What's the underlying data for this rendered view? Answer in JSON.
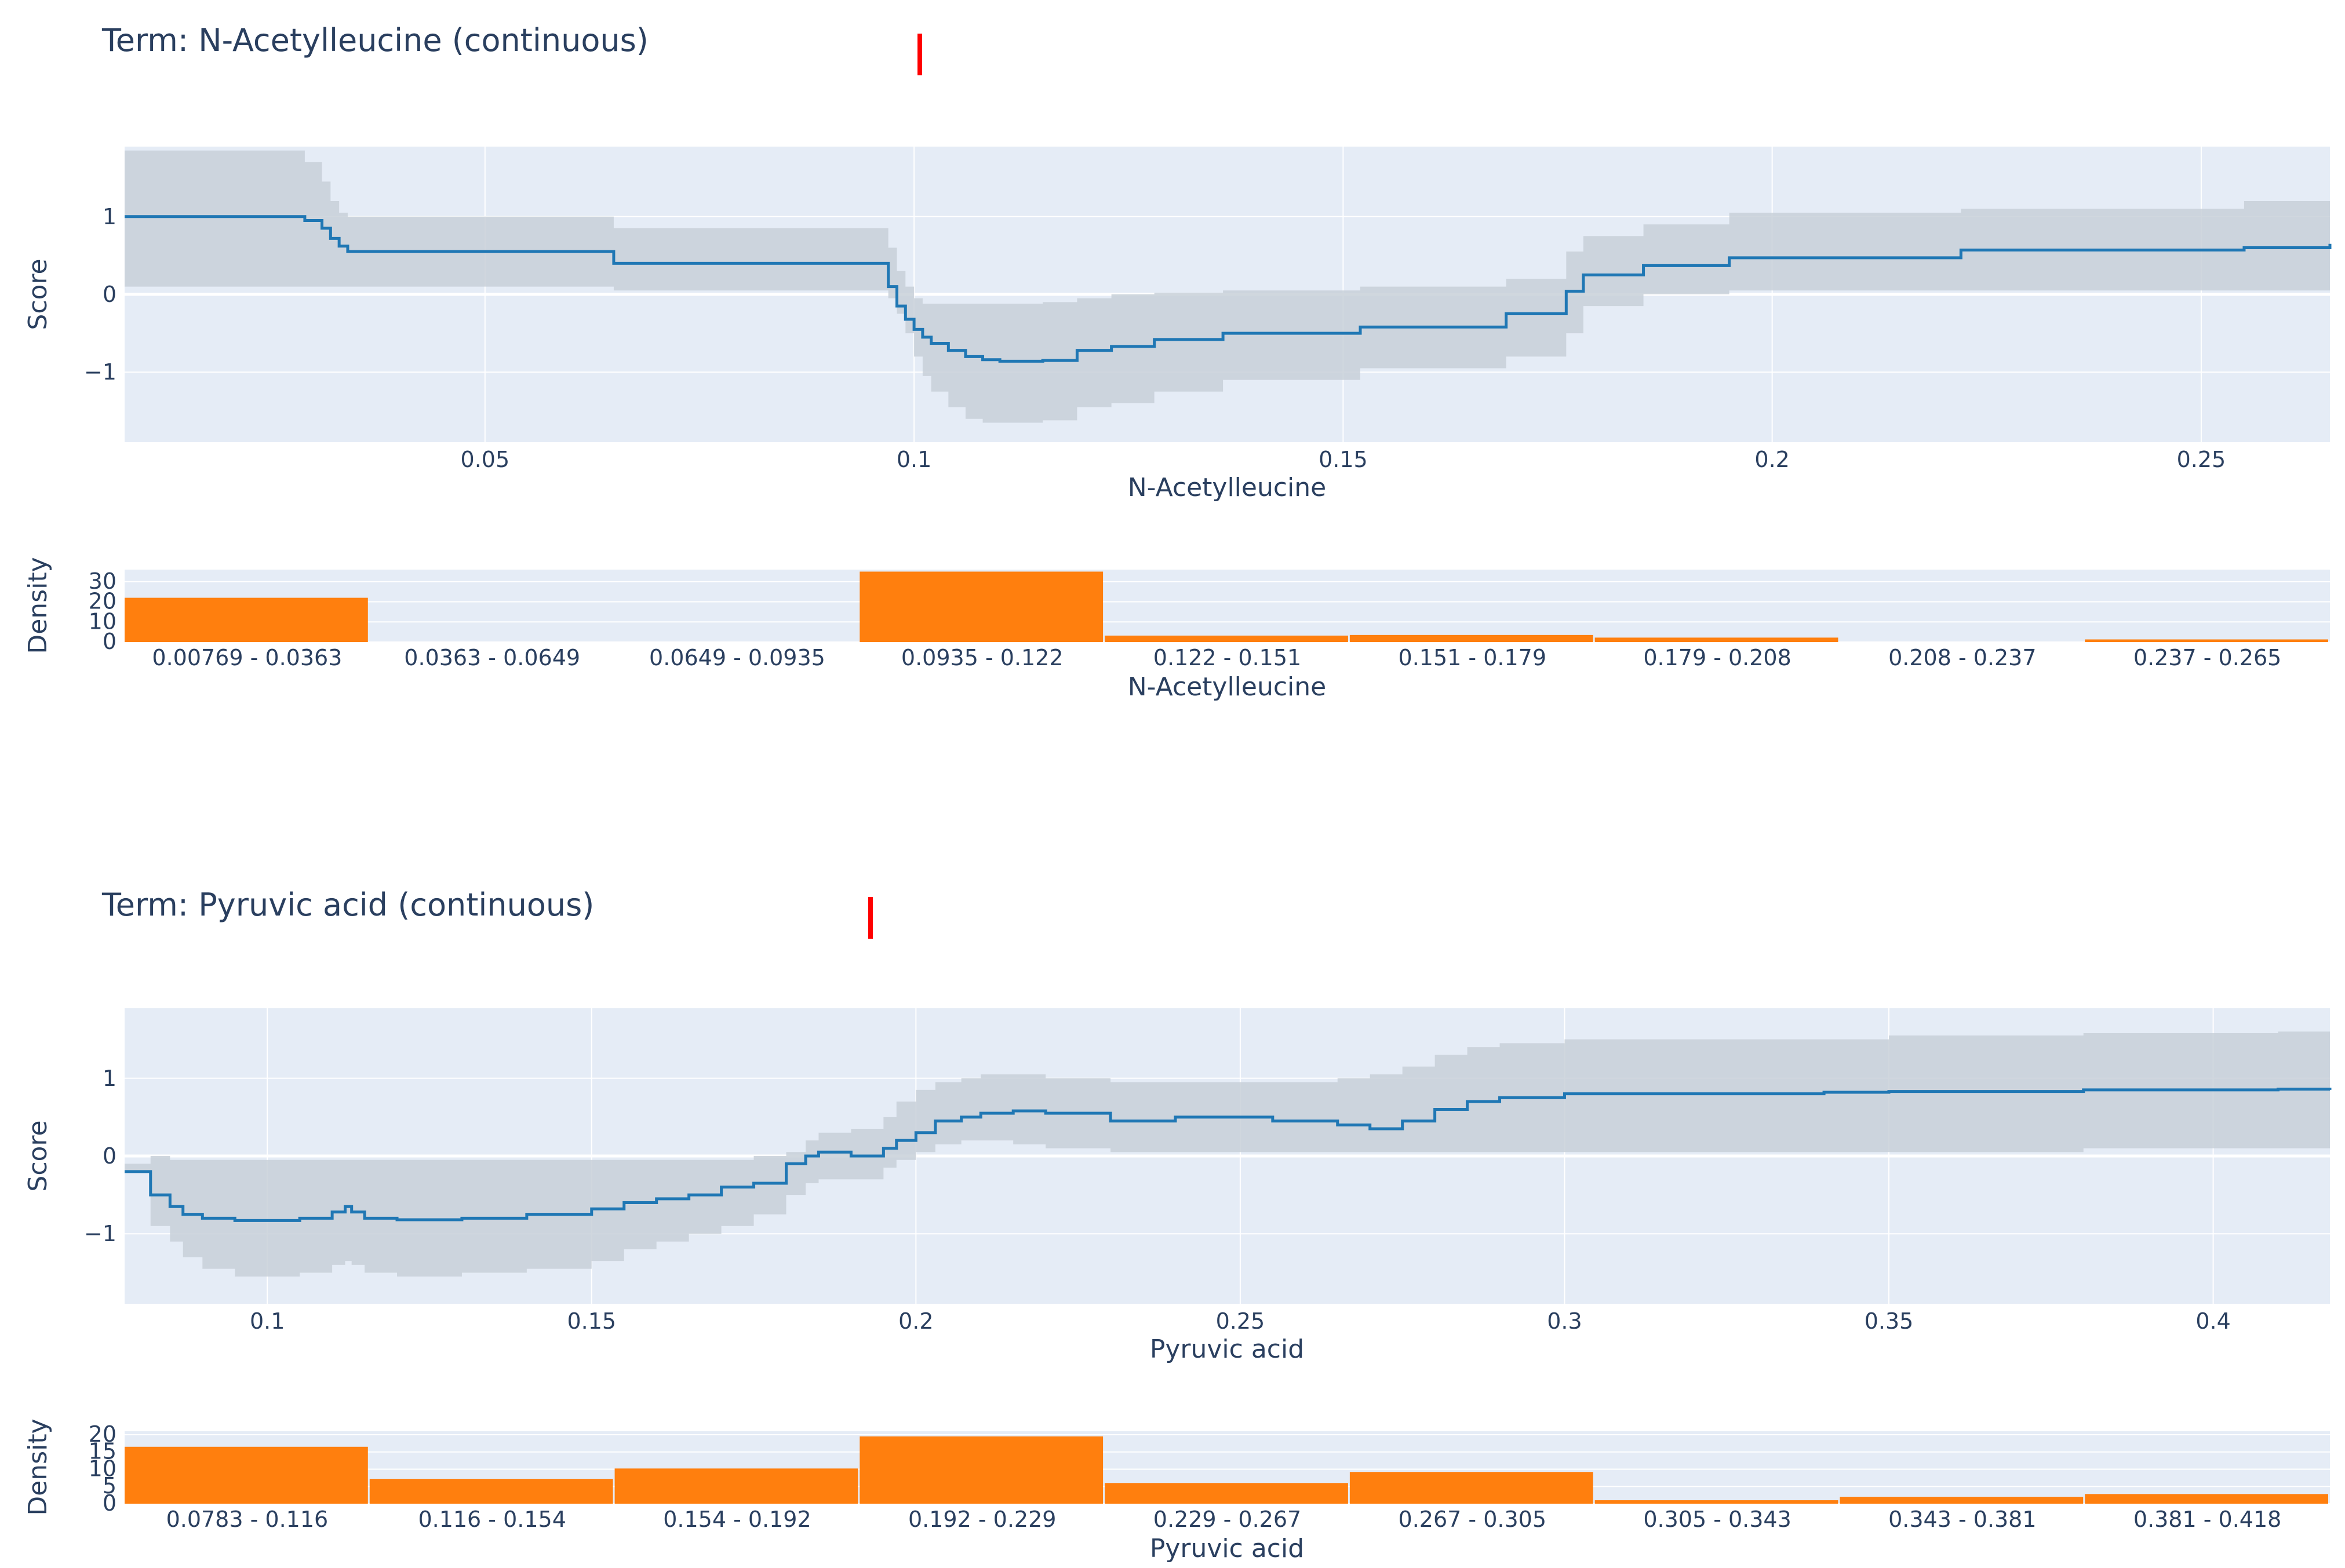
{
  "chart_data": [
    {
      "type": "line",
      "title": "Term: N-Acetylleucine (continuous)",
      "xlabel": "N-Acetylleucine",
      "ylabel": "Score",
      "xlim": [
        0.008,
        0.265
      ],
      "ylim": [
        -1.9,
        1.9
      ],
      "xticks": [
        0.05,
        0.1,
        0.15,
        0.2,
        0.25
      ],
      "xtick_labels": [
        "0.05",
        "0.1",
        "0.15",
        "0.2",
        "0.25"
      ],
      "yticks": [
        1,
        0,
        -1
      ],
      "ytick_labels": [
        "1",
        "0",
        "−1"
      ],
      "grid": true,
      "line_color": "#1f77b4",
      "band_color": "#c8d0d8",
      "series": [
        {
          "name": "Score",
          "x": [
            0.008,
            0.026,
            0.029,
            0.031,
            0.032,
            0.033,
            0.034,
            0.064,
            0.065,
            0.096,
            0.097,
            0.098,
            0.099,
            0.1,
            0.101,
            0.102,
            0.104,
            0.106,
            0.108,
            0.11,
            0.115,
            0.119,
            0.123,
            0.128,
            0.136,
            0.152,
            0.169,
            0.176,
            0.178,
            0.185,
            0.195,
            0.222,
            0.255,
            0.265
          ],
          "y": [
            1.0,
            1.0,
            0.95,
            0.85,
            0.72,
            0.62,
            0.55,
            0.55,
            0.4,
            0.4,
            0.1,
            -0.15,
            -0.32,
            -0.45,
            -0.55,
            -0.63,
            -0.72,
            -0.8,
            -0.84,
            -0.86,
            -0.85,
            -0.72,
            -0.67,
            -0.58,
            -0.5,
            -0.42,
            -0.25,
            0.04,
            0.25,
            0.37,
            0.47,
            0.57,
            0.6,
            0.65
          ],
          "lower": [
            0.1,
            0.1,
            0.1,
            0.1,
            0.1,
            0.1,
            0.1,
            0.1,
            0.05,
            0.05,
            -0.05,
            -0.25,
            -0.5,
            -0.8,
            -1.05,
            -1.25,
            -1.45,
            -1.6,
            -1.65,
            -1.65,
            -1.62,
            -1.45,
            -1.4,
            -1.25,
            -1.1,
            -0.95,
            -0.8,
            -0.5,
            -0.15,
            0.0,
            0.05,
            0.05,
            0.05,
            0.05
          ],
          "upper": [
            1.85,
            1.85,
            1.7,
            1.45,
            1.2,
            1.05,
            1.0,
            1.0,
            0.85,
            0.85,
            0.6,
            0.3,
            0.1,
            -0.05,
            -0.12,
            -0.12,
            -0.12,
            -0.12,
            -0.12,
            -0.12,
            -0.1,
            -0.05,
            0.0,
            0.02,
            0.05,
            0.1,
            0.2,
            0.55,
            0.75,
            0.9,
            1.05,
            1.1,
            1.2,
            1.25
          ]
        }
      ]
    },
    {
      "type": "bar",
      "xlabel": "N-Acetylleucine",
      "ylabel": "Density",
      "ylim": [
        0,
        36
      ],
      "yticks": [
        0,
        10,
        20,
        30
      ],
      "ytick_labels": [
        "0",
        "10",
        "20",
        "30"
      ],
      "grid": true,
      "bar_color": "#ff7f0e",
      "categories": [
        "0.00769 - 0.0363",
        "0.0363 - 0.0649",
        "0.0649 - 0.0935",
        "0.0935 - 0.122",
        "0.122 - 0.151",
        "0.151 - 0.179",
        "0.179 - 0.208",
        "0.208 - 0.237",
        "0.237 - 0.265"
      ],
      "values": [
        22,
        0,
        0,
        35,
        3.2,
        3.5,
        2.2,
        0,
        1.3
      ]
    },
    {
      "type": "line",
      "title": "Term: Pyruvic acid (continuous)",
      "xlabel": "Pyruvic acid",
      "ylabel": "Score",
      "xlim": [
        0.078,
        0.418
      ],
      "ylim": [
        -1.9,
        1.9
      ],
      "xticks": [
        0.1,
        0.15,
        0.2,
        0.25,
        0.3,
        0.35,
        0.4
      ],
      "xtick_labels": [
        "0.1",
        "0.15",
        "0.2",
        "0.25",
        "0.3",
        "0.35",
        "0.4"
      ],
      "yticks": [
        1,
        0,
        -1
      ],
      "ytick_labels": [
        "1",
        "0",
        "−1"
      ],
      "grid": true,
      "line_color": "#1f77b4",
      "band_color": "#c8d0d8",
      "series": [
        {
          "name": "Score",
          "x": [
            0.078,
            0.081,
            0.082,
            0.085,
            0.087,
            0.09,
            0.095,
            0.1,
            0.105,
            0.11,
            0.112,
            0.113,
            0.115,
            0.12,
            0.125,
            0.13,
            0.14,
            0.15,
            0.155,
            0.16,
            0.165,
            0.17,
            0.175,
            0.18,
            0.183,
            0.185,
            0.19,
            0.195,
            0.197,
            0.2,
            0.203,
            0.207,
            0.21,
            0.215,
            0.22,
            0.23,
            0.24,
            0.255,
            0.265,
            0.27,
            0.275,
            0.28,
            0.285,
            0.29,
            0.3,
            0.32,
            0.34,
            0.35,
            0.38,
            0.41,
            0.418
          ],
          "y": [
            -0.2,
            -0.2,
            -0.5,
            -0.65,
            -0.75,
            -0.8,
            -0.83,
            -0.83,
            -0.8,
            -0.72,
            -0.65,
            -0.72,
            -0.8,
            -0.82,
            -0.82,
            -0.8,
            -0.75,
            -0.68,
            -0.6,
            -0.55,
            -0.5,
            -0.4,
            -0.35,
            -0.1,
            0.0,
            0.05,
            0.0,
            0.1,
            0.2,
            0.3,
            0.45,
            0.5,
            0.55,
            0.58,
            0.55,
            0.45,
            0.5,
            0.45,
            0.4,
            0.35,
            0.45,
            0.6,
            0.7,
            0.75,
            0.8,
            0.8,
            0.82,
            0.83,
            0.85,
            0.86,
            0.85
          ],
          "lower": [
            -0.2,
            -0.2,
            -0.9,
            -1.1,
            -1.3,
            -1.45,
            -1.55,
            -1.55,
            -1.5,
            -1.4,
            -1.35,
            -1.4,
            -1.5,
            -1.55,
            -1.55,
            -1.5,
            -1.45,
            -1.35,
            -1.2,
            -1.1,
            -1.0,
            -0.9,
            -0.75,
            -0.5,
            -0.35,
            -0.3,
            -0.3,
            -0.15,
            -0.05,
            0.05,
            0.15,
            0.2,
            0.2,
            0.15,
            0.1,
            0.05,
            0.05,
            0.05,
            0.05,
            0.05,
            0.05,
            0.05,
            0.05,
            0.05,
            0.05,
            0.05,
            0.05,
            0.05,
            0.1,
            0.1,
            0.1
          ],
          "upper": [
            -0.1,
            -0.1,
            0.0,
            -0.05,
            -0.05,
            -0.05,
            -0.05,
            -0.05,
            -0.05,
            -0.05,
            -0.05,
            -0.05,
            -0.05,
            -0.05,
            -0.05,
            -0.05,
            -0.05,
            -0.05,
            -0.05,
            -0.05,
            -0.05,
            -0.05,
            0.0,
            0.05,
            0.2,
            0.3,
            0.35,
            0.5,
            0.7,
            0.85,
            0.95,
            1.0,
            1.05,
            1.05,
            1.0,
            0.95,
            0.95,
            0.95,
            1.0,
            1.05,
            1.15,
            1.3,
            1.4,
            1.45,
            1.5,
            1.5,
            1.5,
            1.55,
            1.58,
            1.6,
            1.6
          ]
        }
      ]
    },
    {
      "type": "bar",
      "xlabel": "Pyruvic acid",
      "ylabel": "Density",
      "ylim": [
        0,
        21
      ],
      "yticks": [
        0,
        5,
        10,
        15,
        20
      ],
      "ytick_labels": [
        "0",
        "5",
        "10",
        "15",
        "20"
      ],
      "grid": true,
      "bar_color": "#ff7f0e",
      "categories": [
        "0.0783 - 0.116",
        "0.116 - 0.154",
        "0.154 - 0.192",
        "0.192 - 0.229",
        "0.229 - 0.267",
        "0.267 - 0.305",
        "0.305 - 0.343",
        "0.343 - 0.381",
        "0.381 - 0.418"
      ],
      "values": [
        16.5,
        7.2,
        10.2,
        19.5,
        6.0,
        9.2,
        1.0,
        2.0,
        2.8
      ]
    }
  ]
}
